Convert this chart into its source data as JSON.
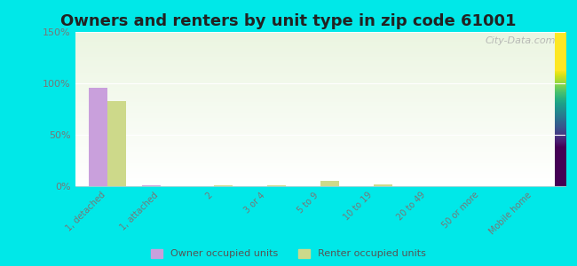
{
  "title": "Owners and renters by unit type in zip code 61001",
  "categories": [
    "1, detached",
    "1, attached",
    "2",
    "3 or 4",
    "5 to 9",
    "10 to 19",
    "20 to 49",
    "50 or more",
    "Mobile home"
  ],
  "owner_values": [
    96,
    1,
    0,
    0,
    0,
    0,
    0,
    0,
    0
  ],
  "renter_values": [
    83,
    0,
    1,
    1,
    5,
    2,
    0,
    0,
    0
  ],
  "owner_color": "#c9a0dc",
  "renter_color": "#cdd98a",
  "background_color_outer": "#00e8e8",
  "ylim": [
    0,
    150
  ],
  "yticks": [
    0,
    50,
    100,
    150
  ],
  "ytick_labels": [
    "0%",
    "50%",
    "100%",
    "150%"
  ],
  "bar_width": 0.35,
  "title_fontsize": 13,
  "watermark": "City-Data.com",
  "tick_color": "#777777",
  "grid_color": "#e8e8d8"
}
